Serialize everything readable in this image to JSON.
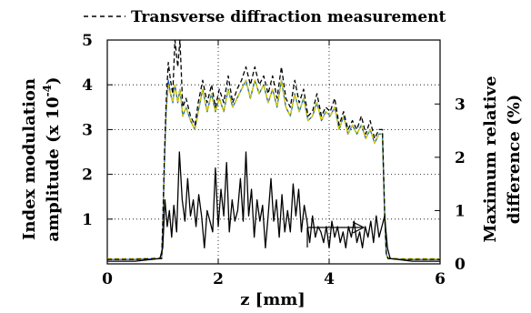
{
  "chart_data": {
    "type": "line",
    "legend": {
      "label": "Transverse diffraction measurement",
      "placement": "top-left"
    },
    "xlabel": "z [mm]",
    "ylabel_line1": "Index modulation",
    "ylabel_line2": "amplitude (x 10",
    "ylabel_exponent": "-4",
    "ylabel_close": ")",
    "y2label_line1": "Maximum relative",
    "y2label_line2": "difference (%)",
    "xlim": [
      0,
      6
    ],
    "ylim": [
      0,
      5
    ],
    "y2lim": [
      0,
      4.2
    ],
    "xticks": [
      "0",
      "2",
      "4",
      "6"
    ],
    "xtick_values": [
      0,
      2,
      4,
      6
    ],
    "yticks": [
      "1",
      "2",
      "3",
      "4",
      "5"
    ],
    "ytick_values": [
      1,
      2,
      3,
      4,
      5
    ],
    "y2ticks": [
      "0",
      "1",
      "2",
      "3"
    ],
    "y2tick_values": [
      0,
      1,
      2,
      3
    ],
    "grid": true,
    "series": [
      {
        "name": "Transverse diffraction measurement",
        "axis": "left",
        "style": "dashed",
        "color": "#000000",
        "x": [
          0,
          0.5,
          0.98,
          1.0,
          1.03,
          1.06,
          1.1,
          1.14,
          1.18,
          1.22,
          1.27,
          1.31,
          1.36,
          1.42,
          1.5,
          1.58,
          1.64,
          1.72,
          1.8,
          1.88,
          1.95,
          2.02,
          2.1,
          2.18,
          2.26,
          2.34,
          2.42,
          2.5,
          2.58,
          2.66,
          2.74,
          2.82,
          2.9,
          2.98,
          3.06,
          3.14,
          3.22,
          3.3,
          3.38,
          3.46,
          3.54,
          3.62,
          3.7,
          3.78,
          3.86,
          3.94,
          4.02,
          4.1,
          4.18,
          4.26,
          4.34,
          4.42,
          4.5,
          4.58,
          4.66,
          4.74,
          4.82,
          4.9,
          4.96,
          5.0,
          5.03,
          5.06,
          5.3,
          6.0
        ],
        "y": [
          0.1,
          0.1,
          0.12,
          0.9,
          2.4,
          3.6,
          4.5,
          4.1,
          3.8,
          5.0,
          4.4,
          5.0,
          3.5,
          3.7,
          3.3,
          3.1,
          3.6,
          4.1,
          3.6,
          4.0,
          3.5,
          3.9,
          3.6,
          4.2,
          3.6,
          3.9,
          4.1,
          4.4,
          4.0,
          4.4,
          4.0,
          4.2,
          3.8,
          4.2,
          3.7,
          4.4,
          3.7,
          3.5,
          4.1,
          3.6,
          3.9,
          3.3,
          3.4,
          3.8,
          3.3,
          3.5,
          3.4,
          3.7,
          3.1,
          3.4,
          3.0,
          3.2,
          3.0,
          3.3,
          2.9,
          3.2,
          2.8,
          3.0,
          3.0,
          1.2,
          0.25,
          0.12,
          0.1,
          0.1
        ]
      },
      {
        "name": "",
        "axis": "left",
        "style": "solid",
        "color": "#1f5bd6",
        "x": [
          0,
          0.5,
          0.98,
          1.0,
          1.03,
          1.06,
          1.1,
          1.14,
          1.18,
          1.22,
          1.27,
          1.31,
          1.36,
          1.42,
          1.5,
          1.58,
          1.64,
          1.72,
          1.8,
          1.88,
          1.95,
          2.02,
          2.1,
          2.18,
          2.26,
          2.34,
          2.42,
          2.5,
          2.58,
          2.66,
          2.74,
          2.82,
          2.9,
          2.98,
          3.06,
          3.14,
          3.22,
          3.3,
          3.38,
          3.46,
          3.54,
          3.62,
          3.7,
          3.78,
          3.86,
          3.94,
          4.02,
          4.1,
          4.18,
          4.26,
          4.34,
          4.42,
          4.5,
          4.58,
          4.66,
          4.74,
          4.82,
          4.9,
          4.96,
          5.0,
          5.03,
          5.06,
          5.3,
          6.0
        ],
        "y": [
          0.1,
          0.1,
          0.12,
          0.8,
          2.2,
          3.4,
          4.1,
          3.8,
          3.6,
          4.0,
          3.6,
          3.9,
          3.3,
          3.5,
          3.2,
          3.0,
          3.4,
          3.9,
          3.4,
          3.8,
          3.4,
          3.7,
          3.4,
          3.9,
          3.5,
          3.7,
          3.9,
          4.1,
          3.7,
          4.1,
          3.8,
          4.0,
          3.6,
          3.9,
          3.5,
          4.1,
          3.5,
          3.3,
          3.8,
          3.4,
          3.7,
          3.2,
          3.3,
          3.6,
          3.2,
          3.4,
          3.3,
          3.5,
          3.0,
          3.3,
          2.9,
          3.1,
          2.9,
          3.1,
          2.8,
          3.0,
          2.7,
          2.9,
          2.9,
          1.1,
          0.22,
          0.12,
          0.1,
          0.1
        ]
      },
      {
        "name": "",
        "axis": "left",
        "style": "dashed",
        "color": "#2aa02a",
        "x": [
          0,
          0.5,
          0.98,
          1.0,
          1.03,
          1.06,
          1.1,
          1.14,
          1.18,
          1.22,
          1.27,
          1.31,
          1.36,
          1.42,
          1.5,
          1.58,
          1.64,
          1.72,
          1.8,
          1.88,
          1.95,
          2.02,
          2.1,
          2.18,
          2.26,
          2.34,
          2.42,
          2.5,
          2.58,
          2.66,
          2.74,
          2.82,
          2.9,
          2.98,
          3.06,
          3.14,
          3.22,
          3.3,
          3.38,
          3.46,
          3.54,
          3.62,
          3.7,
          3.78,
          3.86,
          3.94,
          4.02,
          4.1,
          4.18,
          4.26,
          4.34,
          4.42,
          4.5,
          4.58,
          4.66,
          4.74,
          4.82,
          4.9,
          4.96,
          5.0,
          5.03,
          5.06,
          5.3,
          6.0
        ],
        "y": [
          0.1,
          0.1,
          0.12,
          0.8,
          2.2,
          3.4,
          4.0,
          3.8,
          3.6,
          4.0,
          3.6,
          3.9,
          3.3,
          3.5,
          3.2,
          3.0,
          3.4,
          3.9,
          3.4,
          3.8,
          3.4,
          3.7,
          3.4,
          3.9,
          3.5,
          3.7,
          3.9,
          4.1,
          3.7,
          4.1,
          3.8,
          4.0,
          3.6,
          3.9,
          3.5,
          4.1,
          3.5,
          3.3,
          3.8,
          3.4,
          3.7,
          3.2,
          3.3,
          3.6,
          3.2,
          3.4,
          3.3,
          3.5,
          3.0,
          3.3,
          2.9,
          3.1,
          2.9,
          3.1,
          2.8,
          3.0,
          2.7,
          2.9,
          2.9,
          1.1,
          0.22,
          0.12,
          0.1,
          0.1
        ]
      },
      {
        "name": "",
        "axis": "left",
        "style": "dashed",
        "color": "#e0c800",
        "x": [
          0,
          0.5,
          0.98,
          1.0,
          1.03,
          1.06,
          1.1,
          1.14,
          1.18,
          1.22,
          1.27,
          1.31,
          1.36,
          1.42,
          1.5,
          1.58,
          1.64,
          1.72,
          1.8,
          1.88,
          1.95,
          2.02,
          2.1,
          2.18,
          2.26,
          2.34,
          2.42,
          2.5,
          2.58,
          2.66,
          2.74,
          2.82,
          2.9,
          2.98,
          3.06,
          3.14,
          3.22,
          3.3,
          3.38,
          3.46,
          3.54,
          3.62,
          3.7,
          3.78,
          3.86,
          3.94,
          4.02,
          4.1,
          4.18,
          4.26,
          4.34,
          4.42,
          4.5,
          4.58,
          4.66,
          4.74,
          4.82,
          4.9,
          4.96,
          5.0,
          5.03,
          5.06,
          5.3,
          6.0
        ],
        "y": [
          0.12,
          0.12,
          0.14,
          0.8,
          2.2,
          3.4,
          4.0,
          3.8,
          3.6,
          4.0,
          3.6,
          3.9,
          3.3,
          3.5,
          3.2,
          3.0,
          3.4,
          3.9,
          3.4,
          3.8,
          3.4,
          3.7,
          3.4,
          3.9,
          3.5,
          3.7,
          3.9,
          4.1,
          3.7,
          4.1,
          3.8,
          4.0,
          3.6,
          3.9,
          3.5,
          4.1,
          3.5,
          3.3,
          3.8,
          3.4,
          3.7,
          3.2,
          3.3,
          3.6,
          3.2,
          3.4,
          3.3,
          3.5,
          3.0,
          3.3,
          2.9,
          3.1,
          2.9,
          3.1,
          2.8,
          3.0,
          2.7,
          2.9,
          2.9,
          1.1,
          0.22,
          0.14,
          0.12,
          0.12
        ]
      },
      {
        "name": "",
        "axis": "right",
        "style": "solid",
        "color": "#000000",
        "x": [
          0,
          0.5,
          0.95,
          1.0,
          1.04,
          1.08,
          1.12,
          1.16,
          1.2,
          1.25,
          1.3,
          1.35,
          1.4,
          1.45,
          1.5,
          1.55,
          1.6,
          1.65,
          1.7,
          1.75,
          1.8,
          1.85,
          1.9,
          1.95,
          2.0,
          2.05,
          2.1,
          2.15,
          2.2,
          2.25,
          2.3,
          2.35,
          2.4,
          2.45,
          2.5,
          2.55,
          2.6,
          2.65,
          2.7,
          2.75,
          2.8,
          2.85,
          2.9,
          2.95,
          3.0,
          3.05,
          3.1,
          3.15,
          3.2,
          3.25,
          3.3,
          3.35,
          3.4,
          3.45,
          3.5,
          3.55,
          3.6,
          3.65,
          3.7,
          3.75,
          3.8,
          3.85,
          3.9,
          3.95,
          4.0,
          4.05,
          4.1,
          4.15,
          4.2,
          4.25,
          4.3,
          4.35,
          4.4,
          4.45,
          4.5,
          4.55,
          4.6,
          4.65,
          4.7,
          4.75,
          4.8,
          4.85,
          4.9,
          4.95,
          5.0,
          5.05,
          5.1,
          5.5,
          6.0
        ],
        "y": [
          0.05,
          0.05,
          0.1,
          0.3,
          1.2,
          0.7,
          1.0,
          0.5,
          1.1,
          0.6,
          2.1,
          1.2,
          0.8,
          1.6,
          0.9,
          1.2,
          0.7,
          1.3,
          0.9,
          0.3,
          1.0,
          0.8,
          0.6,
          1.8,
          0.7,
          1.4,
          0.9,
          1.9,
          0.6,
          1.2,
          0.8,
          1.0,
          1.6,
          0.8,
          2.1,
          0.9,
          1.4,
          0.5,
          1.2,
          0.8,
          1.1,
          0.3,
          0.9,
          1.6,
          0.8,
          1.2,
          0.5,
          1.3,
          0.6,
          1.0,
          0.6,
          1.5,
          0.9,
          1.4,
          0.6,
          1.1,
          0.8,
          0.4,
          0.9,
          0.5,
          0.7,
          0.6,
          0.4,
          0.7,
          0.3,
          0.8,
          0.5,
          0.7,
          0.4,
          0.6,
          0.3,
          0.7,
          0.5,
          0.8,
          0.4,
          0.6,
          0.3,
          0.7,
          0.5,
          0.8,
          0.4,
          0.9,
          0.5,
          0.7,
          0.9,
          0.3,
          0.1,
          0.05,
          0.05
        ]
      }
    ]
  }
}
